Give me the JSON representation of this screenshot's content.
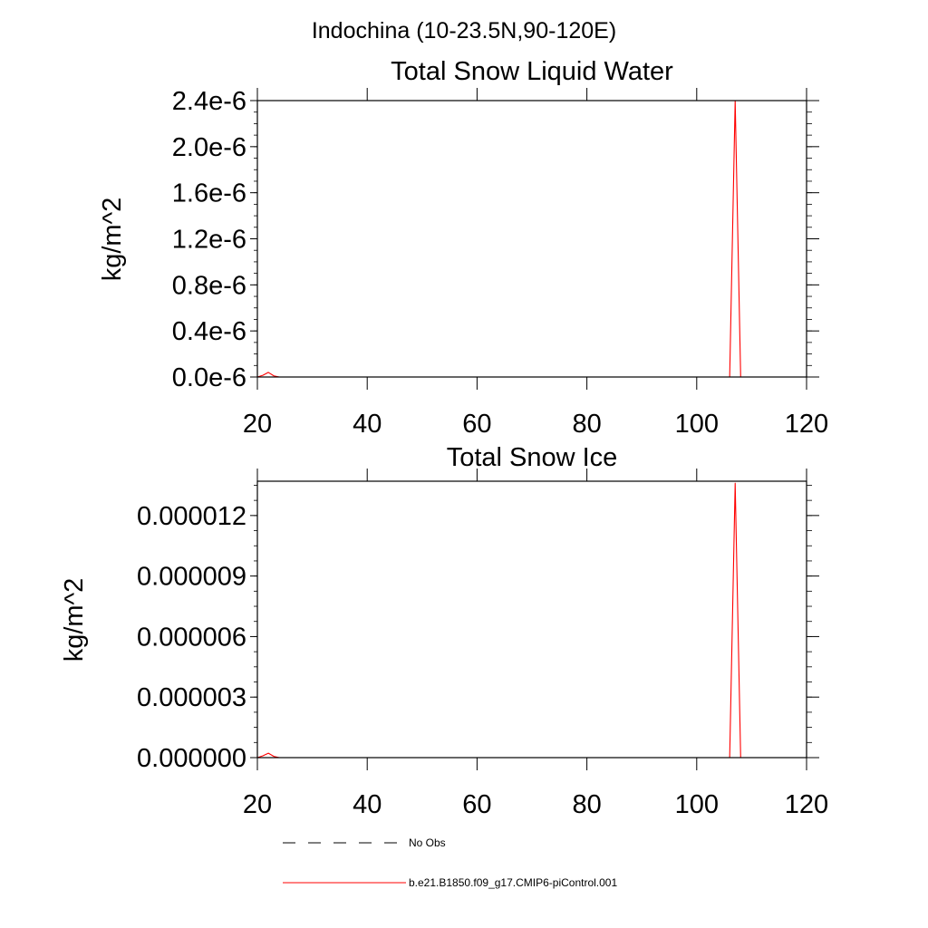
{
  "figure": {
    "title": "Indochina (10-23.5N,90-120E)"
  },
  "legend": {
    "placement": "bottom",
    "entries": [
      {
        "label": "No Obs",
        "color": "#000000",
        "dash": "dashed"
      },
      {
        "label": "b.e21.B1850.f09_g17.CMIP6-piControl.001",
        "color": "#ff0000",
        "dash": "solid"
      }
    ]
  },
  "colors": {
    "model": "#ff0000",
    "axis": "#000000"
  },
  "chart_data": [
    {
      "type": "line",
      "title": "Total Snow Liquid Water",
      "xlabel": "",
      "ylabel": "kg/m^2",
      "xlim": [
        20,
        120
      ],
      "ylim": [
        0,
        2.4e-06
      ],
      "xticks": [
        20,
        40,
        60,
        80,
        100,
        120
      ],
      "xtick_labels": [
        "20",
        "40",
        "60",
        "80",
        "100",
        "120"
      ],
      "yticks": [
        0,
        4e-07,
        8e-07,
        1.2e-06,
        1.6e-06,
        2e-06,
        2.4e-06
      ],
      "ytick_labels": [
        "0.0e-6",
        "0.4e-6",
        "0.8e-6",
        "1.2e-6",
        "1.6e-6",
        "2.0e-6",
        "2.4e-6"
      ],
      "grid": false,
      "series": [
        {
          "name": "b.e21.B1850.f09_g17.CMIP6-piControl.001",
          "color": "#ff0000",
          "x": [
            20,
            21,
            22,
            23,
            24,
            106,
            107,
            108,
            109,
            120
          ],
          "y": [
            0,
            1.5e-08,
            4e-08,
            1e-08,
            0,
            0,
            2.4e-06,
            0,
            0,
            0
          ]
        }
      ]
    },
    {
      "type": "line",
      "title": "Total Snow Ice",
      "xlabel": "",
      "ylabel": "kg/m^2",
      "xlim": [
        20,
        120
      ],
      "ylim": [
        0,
        1.37e-05
      ],
      "xticks": [
        20,
        40,
        60,
        80,
        100,
        120
      ],
      "xtick_labels": [
        "20",
        "40",
        "60",
        "80",
        "100",
        "120"
      ],
      "yticks": [
        0,
        3e-06,
        6e-06,
        9e-06,
        1.2e-05
      ],
      "ytick_labels": [
        "0.000000",
        "0.000003",
        "0.000006",
        "0.000009",
        "0.000012"
      ],
      "grid": false,
      "series": [
        {
          "name": "b.e21.B1850.f09_g17.CMIP6-piControl.001",
          "color": "#ff0000",
          "x": [
            20,
            21,
            22,
            23,
            24,
            106,
            107,
            108,
            109,
            120
          ],
          "y": [
            0,
            9e-08,
            2.2e-07,
            6e-08,
            0,
            0,
            1.36e-05,
            0,
            0,
            0
          ]
        }
      ]
    }
  ]
}
